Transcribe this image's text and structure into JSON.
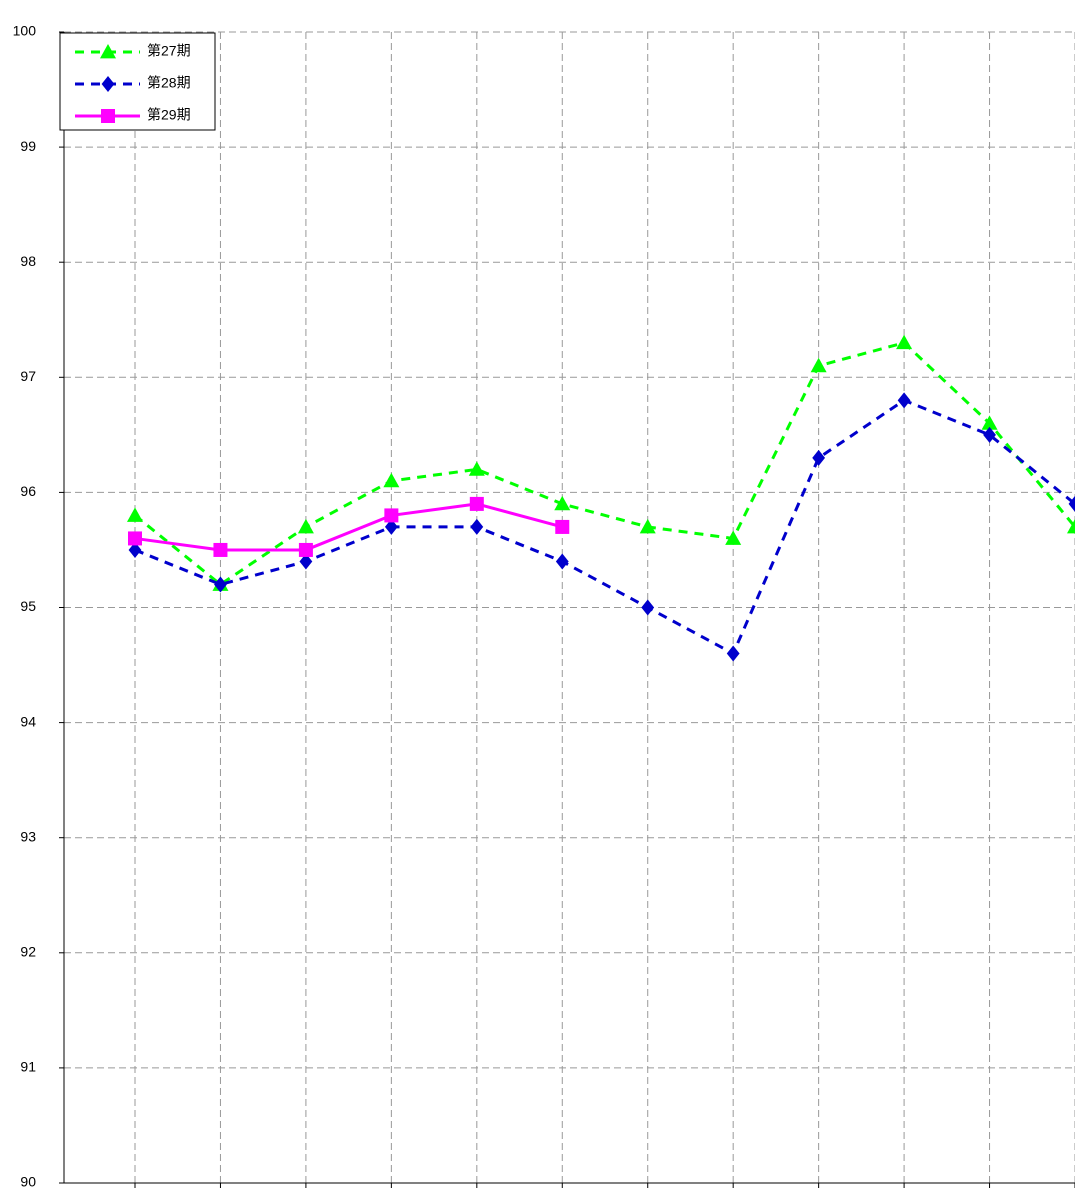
{
  "chart_data": {
    "type": "line",
    "categories": [
      null,
      null,
      null,
      null,
      null,
      null,
      null,
      null,
      null,
      null,
      null,
      null
    ],
    "series": [
      {
        "name": "第27期",
        "color": "#00ff00",
        "dash": true,
        "marker": "triangle",
        "values": [
          95.8,
          95.2,
          95.7,
          96.1,
          96.2,
          95.9,
          95.7,
          95.6,
          97.1,
          97.3,
          96.6,
          95.7
        ]
      },
      {
        "name": "第28期",
        "color": "#0000cc",
        "dash": true,
        "marker": "diamond",
        "values": [
          95.5,
          95.2,
          95.4,
          95.7,
          95.7,
          95.4,
          95.0,
          94.6,
          96.3,
          96.8,
          96.5,
          95.9
        ]
      },
      {
        "name": "第29期",
        "color": "#ff00ff",
        "dash": false,
        "marker": "square",
        "values": [
          95.6,
          95.5,
          95.5,
          95.8,
          95.9,
          95.7,
          null,
          null,
          null,
          null,
          null,
          null
        ]
      }
    ],
    "ylim": [
      90,
      100
    ],
    "yticks": [
      90,
      91,
      92,
      93,
      94,
      95,
      96,
      97,
      98,
      99,
      100
    ],
    "grid": true,
    "legend": "top-left"
  }
}
